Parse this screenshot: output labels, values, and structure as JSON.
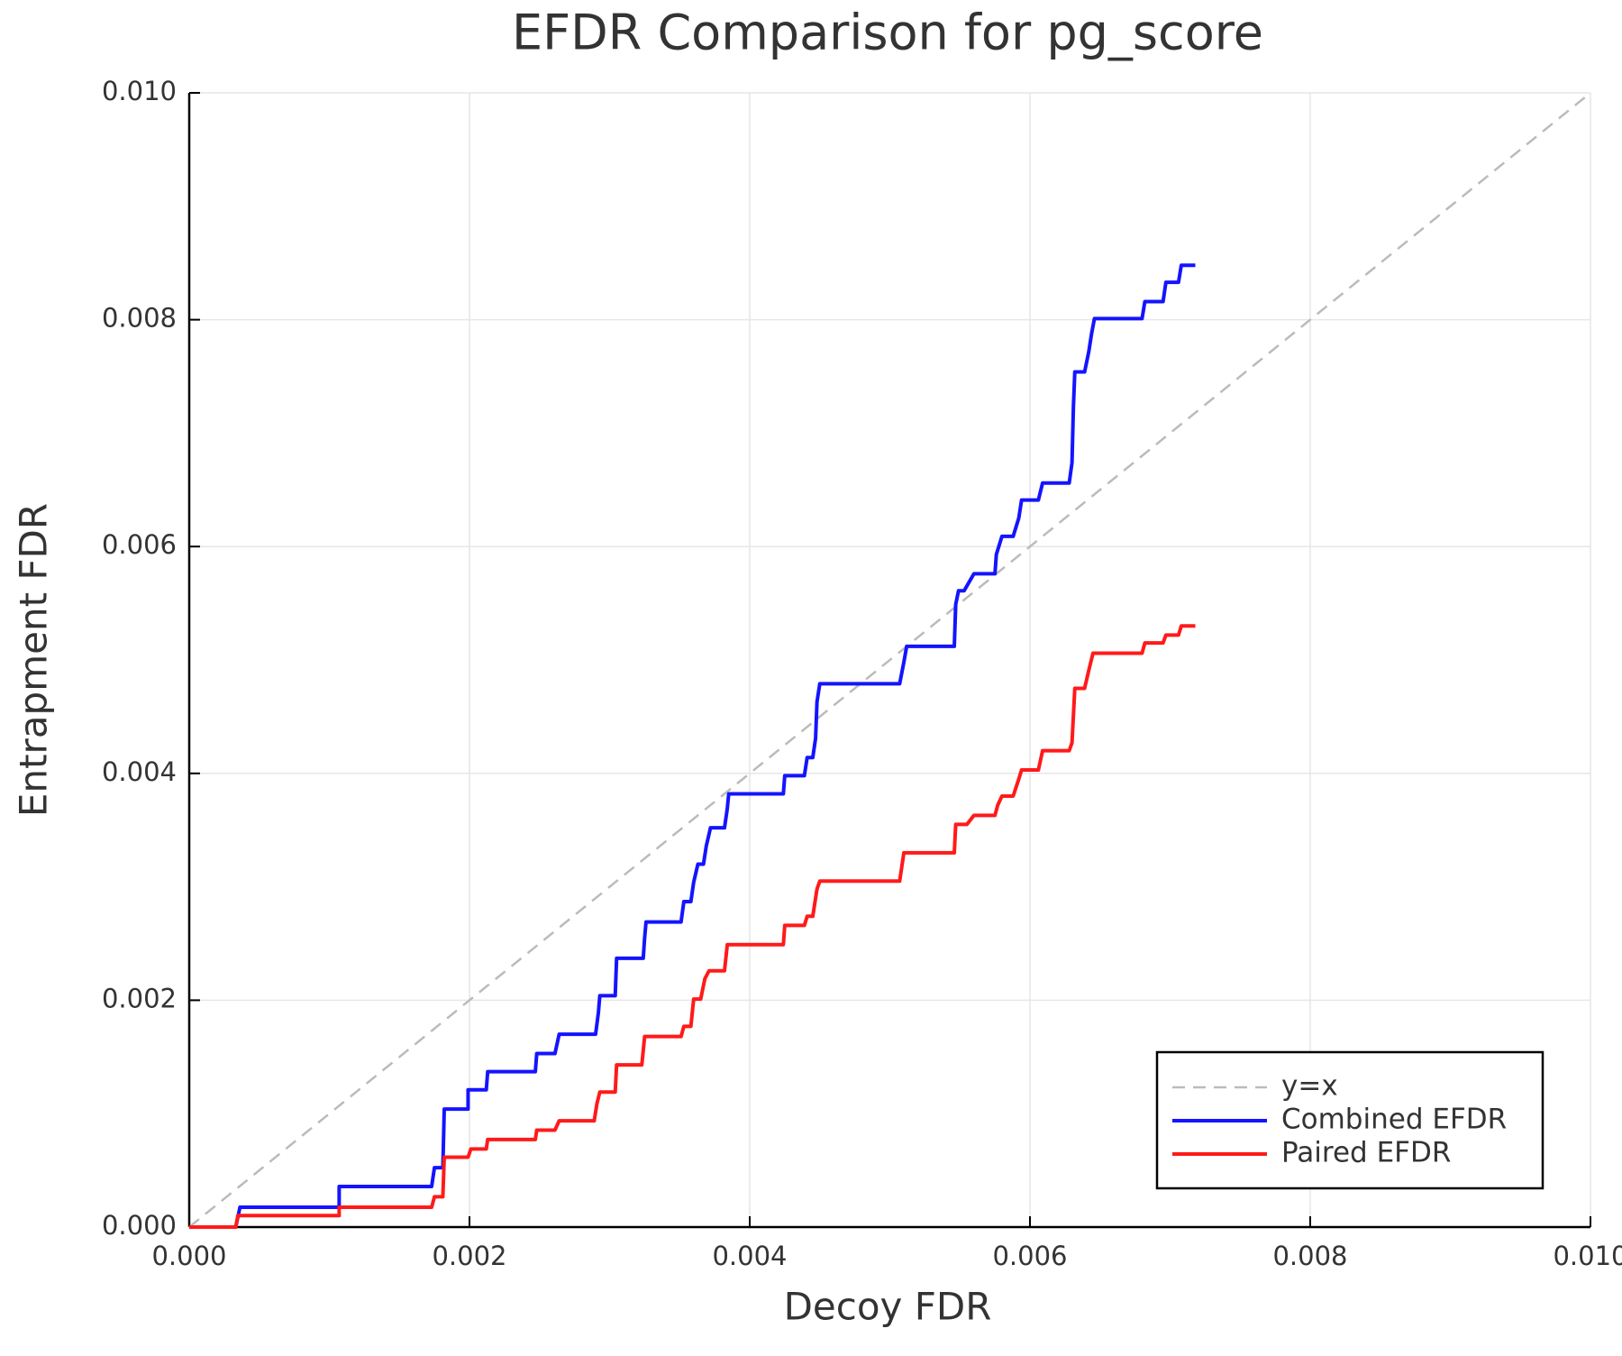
{
  "chart_data": {
    "type": "line",
    "title": "EFDR Comparison for pg_score",
    "x_label": "Decoy FDR",
    "y_label": "Entrapment FDR",
    "xlim": [
      0,
      0.01
    ],
    "ylim": [
      0,
      0.01
    ],
    "xticks": [
      {
        "value": 0,
        "label": "0.000"
      },
      {
        "value": 0.002,
        "label": "0.002"
      },
      {
        "value": 0.004,
        "label": "0.004"
      },
      {
        "value": 0.006,
        "label": "0.006"
      },
      {
        "value": 0.008,
        "label": "0.008"
      },
      {
        "value": 0.01,
        "label": "0.010"
      }
    ],
    "yticks": [
      {
        "value": 0,
        "label": "0.000"
      },
      {
        "value": 0.002,
        "label": "0.002"
      },
      {
        "value": 0.004,
        "label": "0.004"
      },
      {
        "value": 0.006,
        "label": "0.006"
      },
      {
        "value": 0.008,
        "label": "0.008"
      },
      {
        "value": 0.01,
        "label": "0.010"
      }
    ],
    "grid": true,
    "legend": "lower right",
    "series": [
      {
        "name": "y=x",
        "color": "#bbbbbb",
        "dash": true,
        "x": [
          0,
          0.01
        ],
        "values": [
          0,
          0.01
        ]
      },
      {
        "name": "Combined EFDR",
        "color": "#1414ff",
        "dash": false,
        "x": [
          0,
          0.000332,
          0.000362,
          0.00107,
          0.00107,
          0.00173,
          0.00175,
          0.00181,
          0.00182,
          0.00199,
          0.00199,
          0.00212,
          0.00213,
          0.00247,
          0.00248,
          0.00261,
          0.00264,
          0.0029,
          0.00292,
          0.00293,
          0.00304,
          0.00305,
          0.00324,
          0.00325,
          0.00326,
          0.00351,
          0.00353,
          0.00358,
          0.0036,
          0.00363,
          0.00367,
          0.00369,
          0.00372,
          0.00382,
          0.00384,
          0.00385,
          0.00424,
          0.00425,
          0.00439,
          0.00441,
          0.00445,
          0.00447,
          0.00448,
          0.0045,
          0.00507,
          0.0051,
          0.00512,
          0.00546,
          0.00547,
          0.00549,
          0.00553,
          0.0056,
          0.00575,
          0.00576,
          0.0058,
          0.00588,
          0.00592,
          0.00594,
          0.00606,
          0.00609,
          0.00628,
          0.0063,
          0.00631,
          0.00632,
          0.00639,
          0.00642,
          0.00644,
          0.00646,
          0.0068,
          0.00682,
          0.00695,
          0.00697,
          0.00706,
          0.00708,
          0.00718
        ],
        "values": [
          0,
          0,
          0.000175,
          0.000175,
          0.000358,
          0.000358,
          0.000524,
          0.000524,
          0.00104,
          0.00104,
          0.00121,
          0.00121,
          0.00137,
          0.00137,
          0.00153,
          0.00153,
          0.0017,
          0.0017,
          0.00189,
          0.00204,
          0.00204,
          0.00237,
          0.00237,
          0.00255,
          0.00269,
          0.00269,
          0.00287,
          0.00287,
          0.00304,
          0.0032,
          0.0032,
          0.00336,
          0.00352,
          0.00352,
          0.00369,
          0.00382,
          0.00382,
          0.00398,
          0.00398,
          0.00414,
          0.00414,
          0.00431,
          0.00463,
          0.00479,
          0.00479,
          0.00498,
          0.00512,
          0.00512,
          0.00549,
          0.00561,
          0.00561,
          0.00576,
          0.00576,
          0.00593,
          0.00609,
          0.00609,
          0.00625,
          0.00641,
          0.00641,
          0.00656,
          0.00656,
          0.00674,
          0.00723,
          0.00754,
          0.00754,
          0.00772,
          0.00788,
          0.00801,
          0.00801,
          0.00816,
          0.00816,
          0.00833,
          0.00833,
          0.00848,
          0.00848
        ]
      },
      {
        "name": "Paired EFDR",
        "color": "#ff1a1a",
        "dash": false,
        "x": [
          0,
          0.000332,
          0.000347,
          0.00107,
          0.00107,
          0.00173,
          0.00175,
          0.00181,
          0.00182,
          0.00199,
          0.00201,
          0.00212,
          0.00213,
          0.00247,
          0.00248,
          0.00261,
          0.00264,
          0.00289,
          0.00291,
          0.00293,
          0.00304,
          0.00305,
          0.00323,
          0.00325,
          0.00351,
          0.00353,
          0.00358,
          0.0036,
          0.00365,
          0.00368,
          0.00371,
          0.00382,
          0.00384,
          0.00424,
          0.00425,
          0.00439,
          0.00441,
          0.00445,
          0.00448,
          0.0045,
          0.00507,
          0.0051,
          0.00546,
          0.00547,
          0.00555,
          0.0056,
          0.00575,
          0.00577,
          0.0058,
          0.00588,
          0.00592,
          0.00594,
          0.00606,
          0.00609,
          0.00628,
          0.0063,
          0.00632,
          0.00639,
          0.00642,
          0.00645,
          0.0068,
          0.00682,
          0.00695,
          0.00697,
          0.00706,
          0.00708,
          0.00718
        ],
        "values": [
          0,
          0,
          0.000101,
          0.000101,
          0.000175,
          0.000175,
          0.000267,
          0.000267,
          0.000616,
          0.000616,
          0.000689,
          0.000689,
          0.000772,
          0.000772,
          0.000855,
          0.000855,
          0.000937,
          0.000937,
          0.00109,
          0.00119,
          0.00119,
          0.00143,
          0.00143,
          0.00168,
          0.00168,
          0.00177,
          0.00177,
          0.00201,
          0.00201,
          0.00219,
          0.00226,
          0.00226,
          0.00249,
          0.00249,
          0.00266,
          0.00266,
          0.00274,
          0.00274,
          0.00298,
          0.00305,
          0.00305,
          0.0033,
          0.0033,
          0.00355,
          0.00355,
          0.00363,
          0.00363,
          0.00372,
          0.0038,
          0.0038,
          0.00395,
          0.00403,
          0.00403,
          0.0042,
          0.0042,
          0.00427,
          0.00475,
          0.00475,
          0.00491,
          0.00506,
          0.00506,
          0.00515,
          0.00515,
          0.00522,
          0.00522,
          0.0053,
          0.0053
        ]
      }
    ]
  }
}
